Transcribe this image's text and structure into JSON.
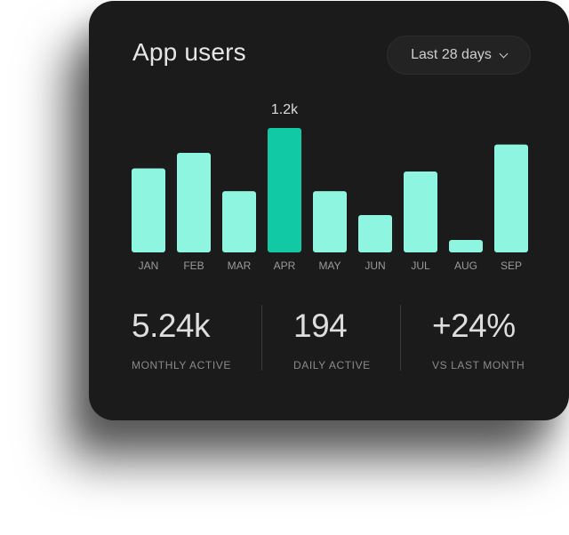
{
  "header": {
    "title": "App users",
    "range_label": "Last 28 days",
    "range_icon": "chevron-down-icon"
  },
  "chart_data": {
    "type": "bar",
    "categories": [
      "JAN",
      "FEB",
      "MAR",
      "APR",
      "MAY",
      "JUN",
      "JUL",
      "AUG",
      "SEP"
    ],
    "values": [
      810,
      960,
      590,
      1200,
      590,
      360,
      780,
      120,
      1040
    ],
    "highlight_index": 3,
    "highlight_label": "1.2k",
    "ylim": [
      0,
      1200
    ],
    "grid": false,
    "colors": {
      "bar": "#8df5e0",
      "highlight": "#12c9a6"
    }
  },
  "stats": [
    {
      "value": "5.24k",
      "caption": "MONTHLY ACTIVE"
    },
    {
      "value": "194",
      "caption": "DAILY ACTIVE"
    },
    {
      "value": "+24%",
      "caption": "VS LAST MONTH"
    }
  ]
}
